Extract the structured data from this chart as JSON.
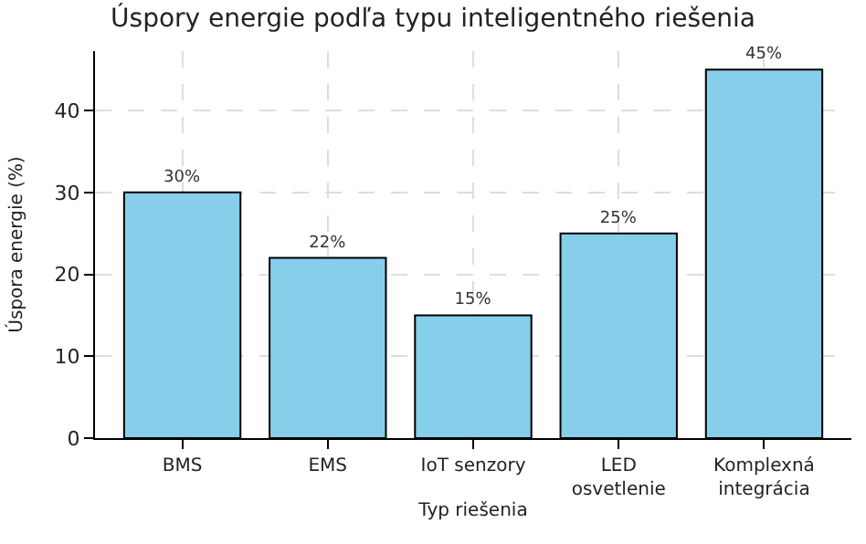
{
  "chart_data": {
    "type": "bar",
    "title": "Úspory energie podľa typu inteligentného riešenia",
    "xlabel": "Typ riešenia",
    "ylabel": "Úspora energie (%)",
    "categories": [
      "BMS",
      "EMS",
      "IoT senzory",
      "LED osvetlenie",
      "Komplexná integrácia"
    ],
    "values": [
      30,
      22,
      15,
      25,
      45
    ],
    "value_labels": [
      "30%",
      "22%",
      "15%",
      "25%",
      "45%"
    ],
    "color": "#87ceeb",
    "ylim": [
      0,
      47.25
    ],
    "yticks": [
      0,
      10,
      20,
      30,
      40
    ],
    "grid": true
  }
}
